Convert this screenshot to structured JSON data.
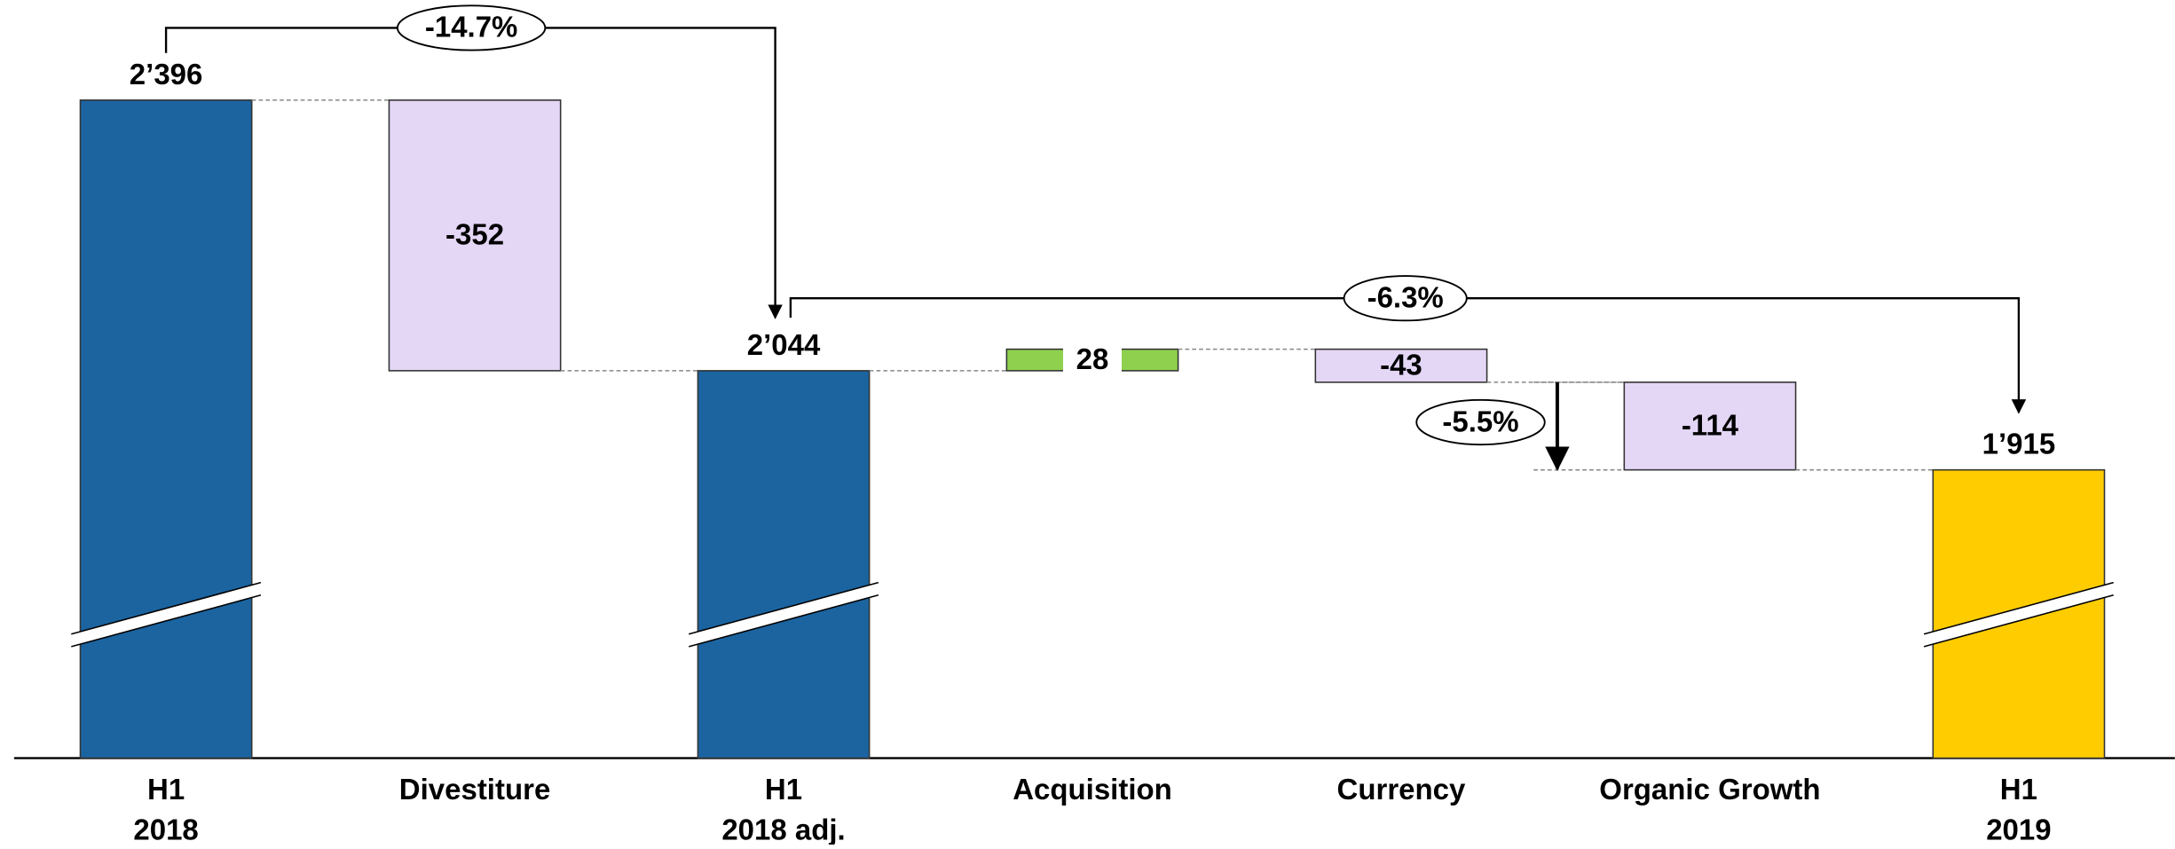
{
  "chart_data": {
    "type": "waterfall",
    "categories": [
      [
        "H1",
        "2018"
      ],
      [
        "Divestiture"
      ],
      [
        "H1",
        "2018 adj."
      ],
      [
        "Acquisition"
      ],
      [
        "Currency"
      ],
      [
        "Organic Growth"
      ],
      [
        "H1",
        "2019"
      ]
    ],
    "values": [
      2396,
      -352,
      2044,
      28,
      -43,
      -114,
      1915
    ],
    "value_labels": [
      "2’396",
      "-352",
      "2’044",
      "28",
      "-43",
      "-114",
      "1’915"
    ],
    "totals": [
      true,
      false,
      true,
      false,
      false,
      false,
      true
    ],
    "colors": [
      "#1b64a0",
      "#e4d6f5",
      "#1b64a0",
      "#8fd14f",
      "#e4d6f5",
      "#e4d6f5",
      "#ffcc00"
    ],
    "ylim": [
      1540,
      2490
    ],
    "annotations": [
      "-14.7%",
      "-6.3%",
      "-5.5%"
    ]
  }
}
